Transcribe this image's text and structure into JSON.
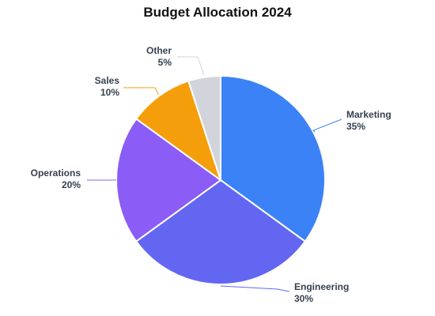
{
  "chart_data": {
    "type": "pie",
    "title": "Budget Allocation 2024",
    "slices": [
      {
        "label": "Marketing",
        "value": 35,
        "value_label": "35%",
        "color": "#3b82f6"
      },
      {
        "label": "Engineering",
        "value": 30,
        "value_label": "30%",
        "color": "#6366f1"
      },
      {
        "label": "Operations",
        "value": 20,
        "value_label": "20%",
        "color": "#8b5cf6"
      },
      {
        "label": "Sales",
        "value": 10,
        "value_label": "10%",
        "color": "#f59e0b"
      },
      {
        "label": "Other",
        "value": 5,
        "value_label": "5%",
        "color": "#d1d5db"
      }
    ],
    "start_angle": "12 o'clock",
    "direction": "clockwise",
    "label_style": "outside with leader lines",
    "legend": "none"
  }
}
